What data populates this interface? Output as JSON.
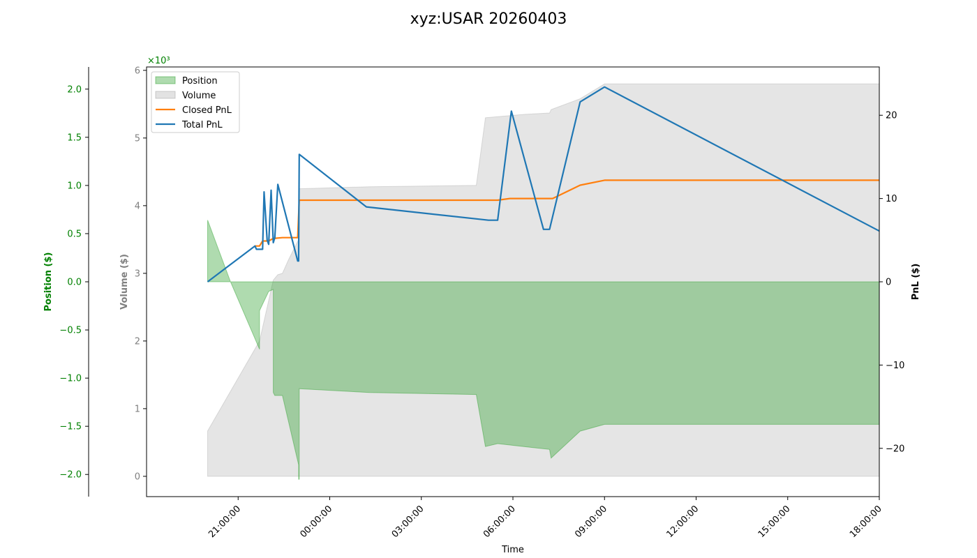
{
  "chart_data": {
    "type": "line",
    "title": "xyz:USAR 20260403",
    "xlabel": "Time",
    "x_ticks": [
      "21:00:00",
      "00:00:00",
      "03:00:00",
      "06:00:00",
      "09:00:00",
      "12:00:00",
      "15:00:00",
      "18:00:00"
    ],
    "x_range_hours": [
      18.0,
      42.0
    ],
    "axes": {
      "position": {
        "label": "Position ($)",
        "color": "#008000",
        "ylim": [
          -2.23,
          2.23
        ],
        "ticks": [
          "2.0",
          "1.5",
          "1.0",
          "0.5",
          "0.0",
          "−0.5",
          "−1.0",
          "−1.5",
          "−2.0"
        ],
        "tick_values": [
          2.0,
          1.5,
          1.0,
          0.5,
          0.0,
          -0.5,
          -1.0,
          -1.5,
          -2.0
        ],
        "scale_note": "×10³"
      },
      "volume": {
        "label": "Volume ($)",
        "color": "#808080",
        "ylim": [
          -0.3,
          6.05
        ],
        "ticks": [
          "6",
          "5",
          "4",
          "3",
          "2",
          "1",
          "0"
        ],
        "tick_values": [
          6,
          5,
          4,
          3,
          2,
          1,
          0
        ]
      },
      "pnl": {
        "label": "PnL ($)",
        "color": "#000000",
        "ylim": [
          -25.8,
          25.8
        ],
        "ticks": [
          "20",
          "10",
          "0",
          "−10",
          "−20"
        ],
        "tick_values": [
          20,
          10,
          0,
          -10,
          -20
        ]
      }
    },
    "legend": {
      "placement": "upper-left",
      "entries": [
        {
          "label": "Position",
          "color": "#2ca02c",
          "kind": "area"
        },
        {
          "label": "Volume",
          "color": "#a0a0a0",
          "kind": "area"
        },
        {
          "label": "Closed PnL",
          "color": "#ff7f0e",
          "kind": "line"
        },
        {
          "label": "Total PnL",
          "color": "#1f77b4",
          "kind": "line"
        }
      ]
    },
    "series": [
      {
        "name": "Volume",
        "axis": "volume",
        "color": "#a0a0a0",
        "points": [
          [
            20.0,
            0.67
          ],
          [
            21.7,
            2.0
          ],
          [
            22.15,
            2.9
          ],
          [
            22.3,
            2.98
          ],
          [
            22.45,
            3.0
          ],
          [
            22.65,
            3.2
          ],
          [
            22.98,
            3.5
          ],
          [
            23.0,
            4.25
          ],
          [
            25.3,
            4.28
          ],
          [
            28.8,
            4.3
          ],
          [
            29.1,
            5.3
          ],
          [
            30.4,
            5.35
          ],
          [
            31.2,
            5.37
          ],
          [
            31.25,
            5.42
          ],
          [
            32.2,
            5.58
          ],
          [
            33.0,
            5.8
          ],
          [
            42.0,
            5.8
          ]
        ]
      },
      {
        "name": "Position",
        "axis": "position",
        "color": "#2ca02c",
        "points": [
          [
            20.0,
            0.64
          ],
          [
            20.75,
            0.0
          ],
          [
            21.7,
            -0.7
          ],
          [
            21.7,
            -0.3
          ],
          [
            21.85,
            -0.2
          ],
          [
            22.0,
            -0.1
          ],
          [
            22.15,
            -0.08
          ],
          [
            22.15,
            -1.15
          ],
          [
            22.2,
            -1.18
          ],
          [
            22.45,
            -1.18
          ],
          [
            22.98,
            -1.9
          ],
          [
            22.98,
            -2.05
          ],
          [
            23.0,
            -2.05
          ],
          [
            23.0,
            -1.11
          ],
          [
            25.3,
            -1.15
          ],
          [
            28.8,
            -1.17
          ],
          [
            29.1,
            -1.71
          ],
          [
            29.5,
            -1.68
          ],
          [
            31.2,
            -1.74
          ],
          [
            31.25,
            -1.83
          ],
          [
            32.2,
            -1.55
          ],
          [
            33.0,
            -1.48
          ],
          [
            42.0,
            -1.48
          ]
        ]
      },
      {
        "name": "Closed PnL",
        "axis": "pnl",
        "color": "#ff7f0e",
        "points": [
          [
            21.55,
            4.3
          ],
          [
            21.7,
            4.3
          ],
          [
            21.8,
            4.9
          ],
          [
            22.0,
            4.9
          ],
          [
            22.15,
            5.2
          ],
          [
            22.45,
            5.3
          ],
          [
            22.95,
            5.3
          ],
          [
            23.0,
            9.8
          ],
          [
            29.5,
            9.8
          ],
          [
            29.9,
            10.0
          ],
          [
            31.3,
            10.0
          ],
          [
            32.2,
            11.6
          ],
          [
            33.0,
            12.2
          ],
          [
            42.0,
            12.2
          ]
        ]
      },
      {
        "name": "Total PnL",
        "axis": "pnl",
        "color": "#1f77b4",
        "points": [
          [
            20.0,
            0.0
          ],
          [
            21.55,
            4.3
          ],
          [
            21.6,
            3.9
          ],
          [
            21.8,
            3.9
          ],
          [
            21.85,
            10.8
          ],
          [
            21.95,
            5.0
          ],
          [
            22.0,
            4.5
          ],
          [
            22.08,
            11.0
          ],
          [
            22.15,
            4.7
          ],
          [
            22.2,
            5.3
          ],
          [
            22.3,
            11.7
          ],
          [
            22.95,
            2.5
          ],
          [
            22.98,
            2.5
          ],
          [
            23.0,
            15.3
          ],
          [
            25.2,
            9.0
          ],
          [
            29.2,
            7.4
          ],
          [
            29.5,
            7.4
          ],
          [
            29.95,
            20.5
          ],
          [
            31.0,
            6.3
          ],
          [
            31.2,
            6.3
          ],
          [
            32.2,
            21.6
          ],
          [
            33.0,
            23.4
          ],
          [
            42.0,
            6.1
          ]
        ]
      }
    ]
  }
}
